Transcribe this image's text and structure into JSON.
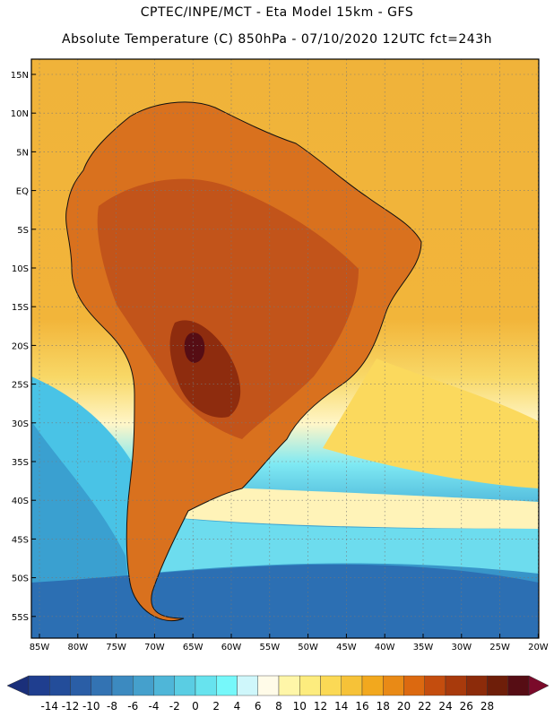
{
  "header": {
    "line1": "CPTEC/INPE/MCT -  Eta Model 15km - GFS",
    "line2": "Absolute Temperature (C) 850hPa - 07/10/2020 12UTC fct=243h"
  },
  "map": {
    "latitude_labels": [
      "15N",
      "10N",
      "5N",
      "EQ",
      "5S",
      "10S",
      "15S",
      "20S",
      "25S",
      "30S",
      "35S",
      "40S",
      "45S",
      "50S",
      "55S"
    ],
    "longitude_labels": [
      "85W",
      "80W",
      "75W",
      "70W",
      "65W",
      "60W",
      "55W",
      "50W",
      "45W",
      "40W",
      "35W",
      "30W",
      "25W",
      "20W"
    ]
  },
  "colorbar": {
    "labels": [
      "-14",
      "-12",
      "-10",
      "-8",
      "-6",
      "-4",
      "-2",
      "0",
      "2",
      "4",
      "6",
      "8",
      "10",
      "12",
      "14",
      "16",
      "18",
      "20",
      "22",
      "24",
      "26",
      "28"
    ],
    "colors": [
      "#1f3e8f",
      "#234d9a",
      "#2a5ea6",
      "#3373b3",
      "#3c8ac0",
      "#45a0cc",
      "#4fb6d8",
      "#5acde3",
      "#67e3ee",
      "#76f8fa",
      "#cff7fb",
      "#fffbe8",
      "#fff6a8",
      "#fdec7e",
      "#fbd955",
      "#f6c238",
      "#f2a81e",
      "#e98a16",
      "#dc6910",
      "#c44d0e",
      "#a83a0c",
      "#8c2b0a",
      "#6e1e09",
      "#560d14"
    ],
    "under_color": "#1a2f7a",
    "over_color": "#7a0a2a"
  }
}
